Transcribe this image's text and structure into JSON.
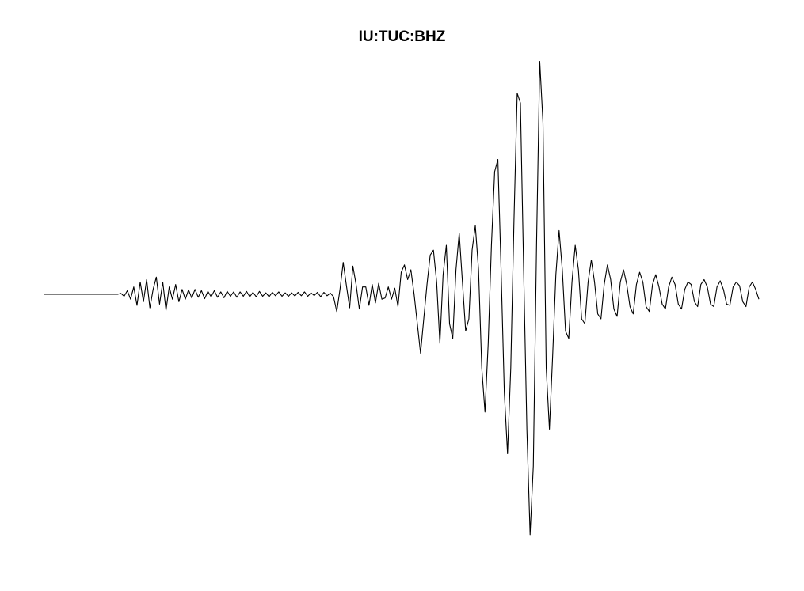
{
  "chart_data": {
    "type": "line",
    "title": "IU:TUC:BHZ",
    "xlabel": "",
    "ylabel": "",
    "axes_visible": false,
    "grid": false,
    "line_color": "#000000",
    "series": [
      {
        "values": [
          0,
          0,
          0,
          0,
          0,
          0,
          0,
          0,
          0,
          0,
          0,
          0,
          0,
          0,
          0,
          0,
          0,
          0,
          0,
          0,
          0,
          0,
          0,
          0,
          0.004,
          -0.008,
          0.015,
          -0.02,
          0.03,
          -0.045,
          0.05,
          -0.03,
          0.06,
          -0.055,
          0.02,
          0.07,
          -0.04,
          0.05,
          -0.065,
          0.03,
          -0.02,
          0.04,
          -0.03,
          0.02,
          -0.02,
          0.018,
          -0.015,
          0.02,
          -0.012,
          0.015,
          -0.018,
          0.012,
          -0.01,
          0.015,
          -0.012,
          0.01,
          -0.014,
          0.012,
          -0.008,
          0.01,
          -0.012,
          0.01,
          -0.008,
          0.012,
          -0.01,
          0.008,
          -0.01,
          0.012,
          -0.008,
          0.006,
          -0.01,
          0.008,
          -0.006,
          0.01,
          -0.008,
          0.006,
          -0.008,
          0.006,
          -0.007,
          0.008,
          -0.006,
          0.01,
          -0.008,
          0.006,
          -0.005,
          0.008,
          -0.01,
          0.008,
          -0.006,
          0.005,
          -0.01,
          -0.07,
          0.02,
          0.13,
          0.035,
          -0.055,
          0.115,
          0.04,
          -0.06,
          0.03,
          0.03,
          -0.045,
          0.04,
          -0.035,
          0.045,
          -0.02,
          -0.015,
          0.03,
          -0.02,
          0.025,
          -0.05,
          0.09,
          0.12,
          0.06,
          0.1,
          0.0,
          -0.12,
          -0.24,
          -0.1,
          0.04,
          0.16,
          0.18,
          0.05,
          -0.2,
          0.08,
          0.2,
          -0.12,
          -0.18,
          0.1,
          0.25,
          0.05,
          -0.15,
          -0.1,
          0.18,
          0.28,
          0.1,
          -0.3,
          -0.48,
          -0.2,
          0.2,
          0.5,
          0.55,
          0.1,
          -0.4,
          -0.65,
          -0.3,
          0.3,
          0.82,
          0.78,
          0.1,
          -0.55,
          -0.98,
          -0.7,
          0.2,
          0.95,
          0.7,
          -0.3,
          -0.55,
          -0.25,
          0.08,
          0.26,
          0.1,
          -0.15,
          -0.18,
          0.05,
          0.2,
          0.1,
          -0.1,
          -0.12,
          0.05,
          0.14,
          0.05,
          -0.08,
          -0.1,
          0.04,
          0.12,
          0.06,
          -0.06,
          -0.09,
          0.05,
          0.1,
          0.04,
          -0.05,
          -0.08,
          0.04,
          0.09,
          0.05,
          -0.05,
          -0.07,
          0.04,
          0.08,
          0.03,
          -0.04,
          -0.06,
          0.03,
          0.07,
          0.04,
          -0.04,
          -0.06,
          0.02,
          0.05,
          0.04,
          -0.03,
          -0.05,
          0.04,
          0.06,
          0.03,
          -0.04,
          -0.05,
          0.03,
          0.055,
          0.02,
          -0.04,
          -0.045,
          0.03,
          0.05,
          0.035,
          -0.03,
          -0.05,
          0.03,
          0.05,
          0.02,
          -0.02
        ]
      }
    ]
  }
}
